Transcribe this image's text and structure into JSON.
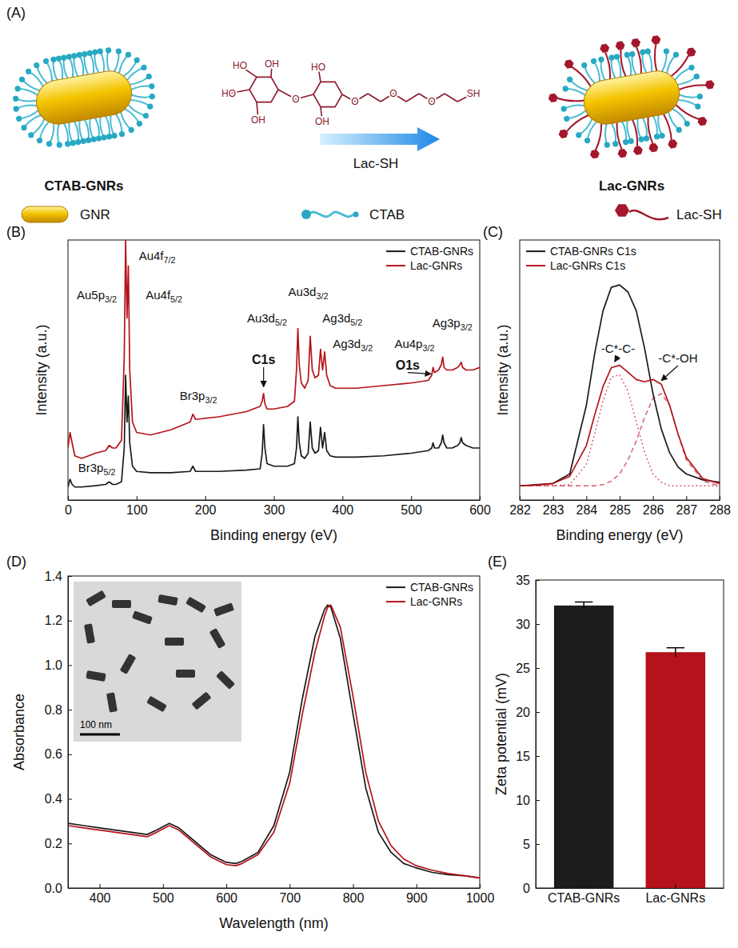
{
  "diagram": {
    "letter": "(A)",
    "left_label": "CTAB-GNRs",
    "right_label": "Lac-GNRs",
    "reagent": "Lac-SH",
    "structure_labels": [
      "HO",
      "OH",
      "HO",
      "OH",
      "O",
      "HO",
      "OH",
      "O",
      "O",
      "O",
      "SH"
    ],
    "key": [
      "GNR",
      "CTAB",
      "Lac-SH"
    ]
  },
  "chart_data": [
    {
      "type": "line",
      "letter": "(B)",
      "x_label": "Binding energy (eV)",
      "y_label": "Intensity (a.u.)",
      "xlim": [
        0,
        600
      ],
      "xticks": [
        0,
        100,
        200,
        300,
        400,
        500,
        600
      ],
      "ylim": [
        0,
        100
      ],
      "tick_labels": "x",
      "legend": "upper right",
      "x": [
        0,
        3,
        6,
        10,
        20,
        40,
        55,
        60,
        65,
        70,
        78,
        82,
        84,
        86,
        88,
        90,
        94,
        100,
        120,
        150,
        178,
        182,
        186,
        220,
        260,
        280,
        283,
        285,
        287,
        290,
        300,
        320,
        330,
        333,
        335,
        337,
        340,
        345,
        350,
        353,
        356,
        360,
        365,
        368,
        371,
        374,
        377,
        382,
        390,
        420,
        460,
        500,
        525,
        530,
        532,
        534,
        540,
        544,
        546,
        548,
        552,
        560,
        568,
        571,
        573,
        575,
        580,
        590,
        600
      ],
      "series": [
        {
          "name": "CTAB-GNRs",
          "color": "#1a1a1a",
          "values": [
            5,
            8,
            6,
            5,
            5,
            5.5,
            6,
            7,
            6,
            6,
            7,
            20,
            48,
            30,
            40,
            22,
            13,
            11,
            10.5,
            10.5,
            11,
            13,
            11,
            11,
            11.5,
            12,
            18,
            29,
            20,
            14,
            13,
            13,
            14,
            20,
            32,
            22,
            17,
            16,
            18,
            30,
            20,
            18,
            19,
            28,
            20,
            26,
            19,
            17,
            16.5,
            16.5,
            17,
            18,
            19,
            20,
            22,
            20,
            20,
            22,
            25,
            22,
            20,
            20,
            21,
            22,
            24,
            22,
            21,
            20,
            20
          ]
        },
        {
          "name": "Lac-GNRs",
          "color": "#b5121b",
          "values": [
            20,
            26,
            22,
            17,
            16,
            18,
            19,
            21,
            20,
            20,
            23,
            55,
            100,
            70,
            90,
            50,
            30,
            26,
            25,
            27,
            30,
            33,
            31,
            32,
            34,
            36,
            38,
            41,
            37,
            35,
            35,
            36,
            38,
            50,
            66,
            52,
            45,
            43,
            46,
            63,
            50,
            47,
            48,
            58,
            50,
            57,
            48,
            44,
            43,
            43,
            44,
            45,
            46,
            48,
            51,
            49,
            50,
            52,
            55,
            51,
            50,
            50,
            51,
            52,
            53,
            51,
            50,
            50,
            51
          ]
        }
      ],
      "annotations": [
        {
          "text": "Au4f7/2",
          "x": 130,
          "y": 94
        },
        {
          "text": "Au5p3/2",
          "x": 42,
          "y": 79
        },
        {
          "text": "Au4f5/2",
          "x": 140,
          "y": 79
        },
        {
          "text": "Br3p5/2",
          "x": 42,
          "y": 12.5
        },
        {
          "text": "Br3p3/2",
          "x": 190,
          "y": 40
        },
        {
          "text": "C1s",
          "x": 285,
          "y": 54,
          "points_to": [
            285,
            43.5
          ]
        },
        {
          "text": "Au3d5/2",
          "x": 290,
          "y": 70
        },
        {
          "text": "Au3d3/2",
          "x": 350,
          "y": 80
        },
        {
          "text": "Ag3d5/2",
          "x": 400,
          "y": 70
        },
        {
          "text": "Ag3d3/2",
          "x": 415,
          "y": 60
        },
        {
          "text": "Au4p3/2",
          "x": 505,
          "y": 60
        },
        {
          "text": "O1s",
          "x": 495,
          "y": 52,
          "points_to": [
            529,
            48.5
          ]
        },
        {
          "text": "Ag3p3/2",
          "x": 560,
          "y": 68
        }
      ]
    },
    {
      "type": "line",
      "letter": "(C)",
      "x_label": "Binding energy (eV)",
      "y_label": "Intensity (a.u.)",
      "xlim": [
        282,
        288
      ],
      "xticks": [
        282,
        283,
        284,
        285,
        286,
        287,
        288
      ],
      "ylim": [
        0,
        110
      ],
      "tick_labels": "x",
      "legend": "upper left",
      "x": [
        282,
        282.5,
        283,
        283.5,
        284,
        284.25,
        284.5,
        284.75,
        285,
        285.25,
        285.5,
        285.75,
        286,
        286.25,
        286.5,
        286.75,
        287,
        287.5,
        288
      ],
      "series": [
        {
          "name": "CTAB-GNRs C1s",
          "color": "#1a1a1a",
          "values": [
            6,
            6.5,
            7,
            11,
            40,
            62,
            80,
            90,
            91,
            88,
            80,
            64,
            45,
            30,
            20,
            14,
            11,
            8.5,
            7.5
          ]
        },
        {
          "name": "Lac-GNRs C1s",
          "color": "#b5121b",
          "values": [
            6,
            6.3,
            7,
            10,
            23,
            36,
            48,
            56,
            57,
            54,
            51,
            50,
            51,
            49,
            40,
            28,
            18,
            9,
            7
          ]
        }
      ],
      "components": [
        {
          "color": "#d45a6a",
          "line_style": "dotted",
          "values": [
            6,
            6,
            6,
            6.5,
            15,
            28,
            42,
            52,
            53,
            46,
            33,
            20,
            11,
            7.5,
            6,
            6,
            6,
            6,
            6
          ]
        },
        {
          "color": "#d45a6a",
          "line_style": "dashed",
          "values": [
            6,
            6,
            6,
            6,
            6,
            6,
            6.5,
            8,
            11,
            17,
            25,
            35,
            43,
            45,
            40,
            28,
            17,
            8,
            6
          ]
        }
      ],
      "annotations": [
        {
          "text": "-C*-C-",
          "x": 284.95,
          "y": 64,
          "points_to": [
            284.85,
            58.5
          ]
        },
        {
          "text": "-C*-OH",
          "x": 286.75,
          "y": 60,
          "points_to": [
            286.25,
            50.5
          ]
        }
      ]
    },
    {
      "type": "line",
      "letter": "(D)",
      "x_label": "Wavelength (nm)",
      "y_label": "Absorbance",
      "xlim": [
        350,
        1000
      ],
      "xticks": [
        400,
        500,
        600,
        700,
        800,
        900,
        1000
      ],
      "ylim": [
        0,
        1.4
      ],
      "yticks": [
        {
          "value": 0,
          "label": "0.0"
        },
        0.2,
        0.4,
        0.6,
        0.8,
        {
          "value": 1,
          "label": "1.0"
        },
        1.2,
        1.4
      ],
      "legend": "upper right",
      "x": [
        350,
        375,
        400,
        425,
        450,
        475,
        490,
        510,
        525,
        550,
        575,
        600,
        615,
        625,
        650,
        675,
        700,
        720,
        740,
        755,
        760,
        765,
        780,
        800,
        820,
        840,
        860,
        880,
        900,
        925,
        950,
        975,
        1000
      ],
      "series": [
        {
          "name": "CTAB-GNRs",
          "color": "#1a1a1a",
          "values": [
            0.29,
            0.28,
            0.27,
            0.26,
            0.25,
            0.24,
            0.26,
            0.29,
            0.27,
            0.21,
            0.15,
            0.115,
            0.11,
            0.12,
            0.16,
            0.28,
            0.52,
            0.85,
            1.13,
            1.25,
            1.27,
            1.26,
            1.12,
            0.78,
            0.45,
            0.25,
            0.16,
            0.11,
            0.09,
            0.07,
            0.06,
            0.055,
            0.045
          ]
        },
        {
          "name": "Lac-GNRs",
          "color": "#b5121b",
          "values": [
            0.28,
            0.27,
            0.26,
            0.25,
            0.24,
            0.23,
            0.25,
            0.28,
            0.26,
            0.2,
            0.14,
            0.105,
            0.1,
            0.11,
            0.15,
            0.25,
            0.47,
            0.78,
            1.06,
            1.22,
            1.26,
            1.27,
            1.17,
            0.86,
            0.52,
            0.3,
            0.19,
            0.13,
            0.1,
            0.08,
            0.065,
            0.055,
            0.045
          ]
        }
      ],
      "inset": {
        "scale_bar": "100 nm"
      }
    },
    {
      "type": "bar",
      "letter": "(E)",
      "y_label": "Zeta potential (mV)",
      "categories": [
        "CTAB-GNRs",
        "Lac-GNRs"
      ],
      "values": [
        32.1,
        26.8
      ],
      "errors": [
        0.4,
        0.5
      ],
      "colors": [
        "#1c1c1c",
        "#b5121b"
      ],
      "ylim": [
        0,
        35
      ],
      "yticks": [
        0,
        5,
        10,
        15,
        20,
        25,
        30,
        35
      ]
    }
  ]
}
